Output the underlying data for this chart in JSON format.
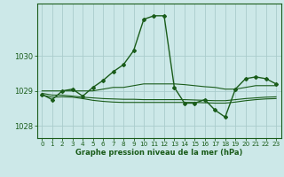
{
  "title": "Graphe pression niveau de la mer (hPa)",
  "bg_color": "#cce8e8",
  "grid_color": "#aacccc",
  "line_color": "#1a5c1a",
  "xlim": [
    -0.5,
    23.5
  ],
  "ylim": [
    1027.65,
    1031.5
  ],
  "yticks": [
    1028,
    1029,
    1030
  ],
  "xticks": [
    0,
    1,
    2,
    3,
    4,
    5,
    6,
    7,
    8,
    9,
    10,
    11,
    12,
    13,
    14,
    15,
    16,
    17,
    18,
    19,
    20,
    21,
    22,
    23
  ],
  "series_main": [
    1028.9,
    1028.75,
    1029.0,
    1029.05,
    1028.85,
    1029.1,
    1029.3,
    1029.55,
    1029.75,
    1030.15,
    1031.05,
    1031.15,
    1031.15,
    1029.1,
    1028.65,
    1028.65,
    1028.75,
    1028.45,
    1028.25,
    1029.05,
    1029.35,
    1029.4,
    1029.35,
    1029.2
  ],
  "series_flat": [
    [
      1029.0,
      1029.0,
      1029.0,
      1029.0,
      1029.0,
      1029.0,
      1029.05,
      1029.1,
      1029.1,
      1029.15,
      1029.2,
      1029.2,
      1029.2,
      1029.2,
      1029.18,
      1029.15,
      1029.12,
      1029.1,
      1029.05,
      1029.05,
      1029.1,
      1029.15,
      1029.15,
      1029.15
    ],
    [
      1028.93,
      1028.88,
      1028.88,
      1028.85,
      1028.82,
      1028.8,
      1028.78,
      1028.77,
      1028.76,
      1028.76,
      1028.75,
      1028.75,
      1028.75,
      1028.75,
      1028.75,
      1028.74,
      1028.73,
      1028.72,
      1028.72,
      1028.75,
      1028.78,
      1028.8,
      1028.82,
      1028.83
    ],
    [
      1028.88,
      1028.82,
      1028.83,
      1028.82,
      1028.78,
      1028.73,
      1028.7,
      1028.68,
      1028.67,
      1028.67,
      1028.67,
      1028.67,
      1028.67,
      1028.67,
      1028.67,
      1028.67,
      1028.66,
      1028.65,
      1028.65,
      1028.68,
      1028.72,
      1028.75,
      1028.77,
      1028.78
    ]
  ]
}
